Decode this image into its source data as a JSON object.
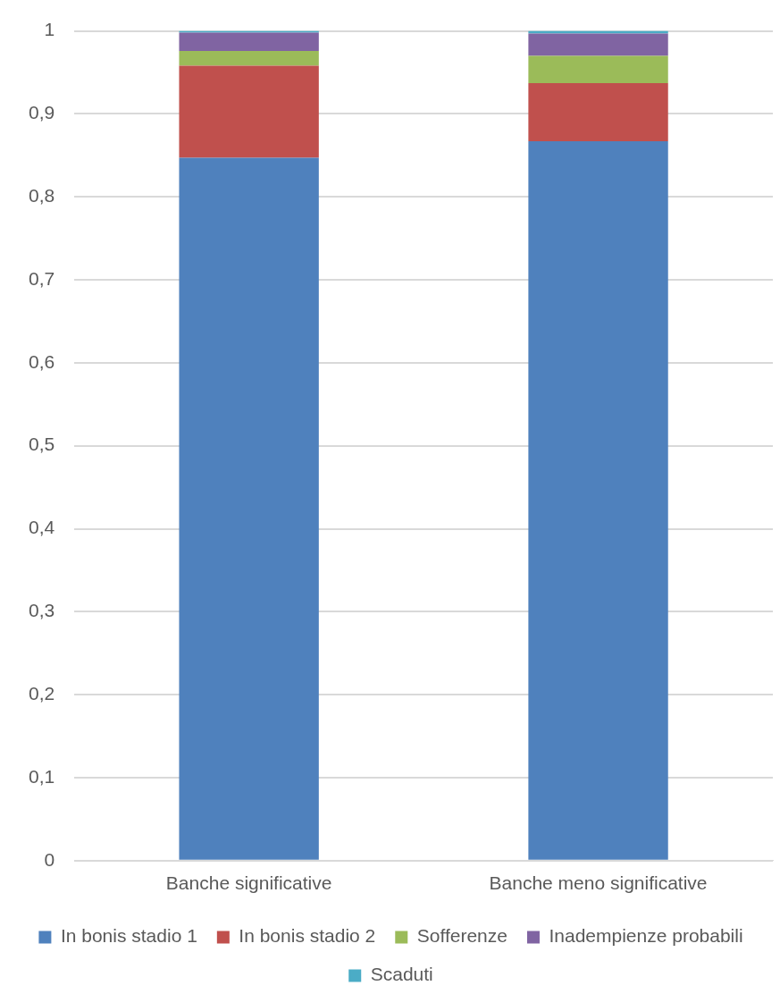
{
  "chart_data": {
    "type": "bar",
    "stacked": true,
    "categories": [
      "Banche significative",
      "Banche meno significative"
    ],
    "series": [
      {
        "name": "In bonis stadio 1",
        "color": "#4f81bd",
        "values": [
          0.847,
          0.867
        ]
      },
      {
        "name": "In bonis stadio 2",
        "color": "#c0504d",
        "values": [
          0.111,
          0.07
        ]
      },
      {
        "name": "Sofferenze",
        "color": "#9bbb59",
        "values": [
          0.018,
          0.033
        ]
      },
      {
        "name": "Inadempienze probabili",
        "color": "#8064a2",
        "values": [
          0.022,
          0.027
        ]
      },
      {
        "name": "Scaduti",
        "color": "#4bacc6",
        "values": [
          0.002,
          0.003
        ]
      }
    ],
    "ylim": [
      0,
      1
    ],
    "yticks": [
      0,
      {
        "value": 0.1,
        "label": "0,1"
      },
      {
        "value": 0.2,
        "label": "0,2"
      },
      {
        "value": 0.3,
        "label": "0,3"
      },
      {
        "value": 0.4,
        "label": "0,4"
      },
      {
        "value": 0.5,
        "label": "0,5"
      },
      {
        "value": 0.6,
        "label": "0,6"
      },
      {
        "value": 0.7,
        "label": "0,7"
      },
      {
        "value": 0.8,
        "label": "0,8"
      },
      {
        "value": 0.9,
        "label": "0,9"
      },
      1
    ],
    "grid": "y",
    "legend": "bottom"
  }
}
